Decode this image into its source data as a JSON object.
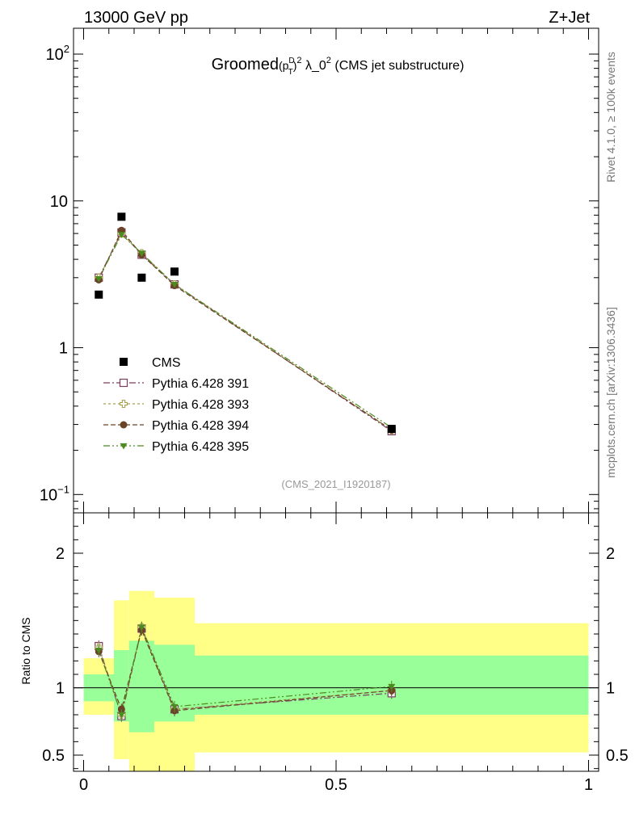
{
  "header": {
    "left_label": "13000 GeV pp",
    "right_label": "Z+Jet"
  },
  "side_labels": {
    "rivet": "Rivet 4.1.0, ≥ 100k events",
    "mcplots": "mcplots.cern.ch [arXiv:1306.3436]"
  },
  "chart_data": {
    "type": "scatter",
    "title": {
      "prefix": "Groomed",
      "math_p": "(p",
      "math_sup_D": "D",
      "math_sub_T": "T",
      "math_close": ")",
      "math_sup_2": "2",
      "lambda": " λ_0",
      "lambda_sup": "2",
      "suffix": " (CMS jet substructure)"
    },
    "analysis_tag": "(CMS_2021_I1920187)",
    "ratio_ylabel": "Ratio to CMS",
    "main_yscale": "log",
    "main_ylim": [
      0.075,
      150
    ],
    "ratio_ylim": [
      0.38,
      2.3
    ],
    "xlim": [
      -0.02,
      1.02
    ],
    "main_yticks": [
      {
        "value": 0.1,
        "base": "10",
        "exp": "−1"
      },
      {
        "value": 1,
        "base": "1",
        "exp": ""
      },
      {
        "value": 10,
        "base": "10",
        "exp": ""
      },
      {
        "value": 100,
        "base": "10",
        "exp": "2"
      }
    ],
    "ratio_yticks": [
      {
        "value": 0.5,
        "label": "0.5"
      },
      {
        "value": 1,
        "label": "1"
      },
      {
        "value": 2,
        "label": "2"
      }
    ],
    "xticks": [
      {
        "value": 0,
        "label": "0"
      },
      {
        "value": 0.5,
        "label": "0.5"
      },
      {
        "value": 1,
        "label": "1"
      }
    ],
    "bins": [
      {
        "lo": 0,
        "hi": 0.06
      },
      {
        "lo": 0.06,
        "hi": 0.09
      },
      {
        "lo": 0.09,
        "hi": 0.14
      },
      {
        "lo": 0.14,
        "hi": 0.22
      },
      {
        "lo": 0.22,
        "hi": 1.0
      }
    ],
    "x": [
      0.03,
      0.075,
      0.115,
      0.18,
      0.61
    ],
    "data": {
      "name": "CMS",
      "values": [
        2.3,
        7.8,
        3.0,
        3.3,
        0.28
      ],
      "band_inner": [
        [
          0.9,
          1.1
        ],
        [
          0.75,
          1.28
        ],
        [
          0.67,
          1.35
        ],
        [
          0.75,
          1.32
        ],
        [
          0.8,
          1.24
        ]
      ],
      "band_outer": [
        [
          0.8,
          1.22
        ],
        [
          0.47,
          1.65
        ],
        [
          0.35,
          1.72
        ],
        [
          0.35,
          1.67
        ],
        [
          0.52,
          1.48
        ]
      ]
    },
    "series": [
      {
        "name": "Pythia 6.428 391",
        "color": "#7a3d5e",
        "marker": "open-square",
        "dash": "8,3,2,3",
        "values": [
          3.0,
          6.1,
          4.3,
          2.7,
          0.27
        ],
        "ratio": [
          1.31,
          0.79,
          1.44,
          0.84,
          0.96
        ]
      },
      {
        "name": "Pythia 6.428 393",
        "color": "#a8a050",
        "marker": "open-cross",
        "dash": "3,3",
        "values": [
          3.0,
          6.0,
          4.4,
          2.7,
          0.275
        ],
        "ratio": [
          1.3,
          0.8,
          1.45,
          0.84,
          0.98
        ]
      },
      {
        "name": "Pythia 6.428 394",
        "color": "#6b4428",
        "marker": "filled-circle",
        "dash": "6,3",
        "values": [
          2.9,
          6.3,
          4.3,
          2.65,
          0.275
        ],
        "ratio": [
          1.27,
          0.84,
          1.43,
          0.83,
          0.98
        ]
      },
      {
        "name": "Pythia 6.428 395",
        "color": "#4d8a20",
        "marker": "filled-triangle-down",
        "dash": "8,3,2,3,2,3",
        "values": [
          2.95,
          5.9,
          4.4,
          2.7,
          0.285
        ],
        "ratio": [
          1.28,
          0.8,
          1.45,
          0.86,
          1.01
        ]
      }
    ],
    "colors": {
      "band_inner": "#99ff99",
      "band_outer": "#ffff88"
    }
  }
}
